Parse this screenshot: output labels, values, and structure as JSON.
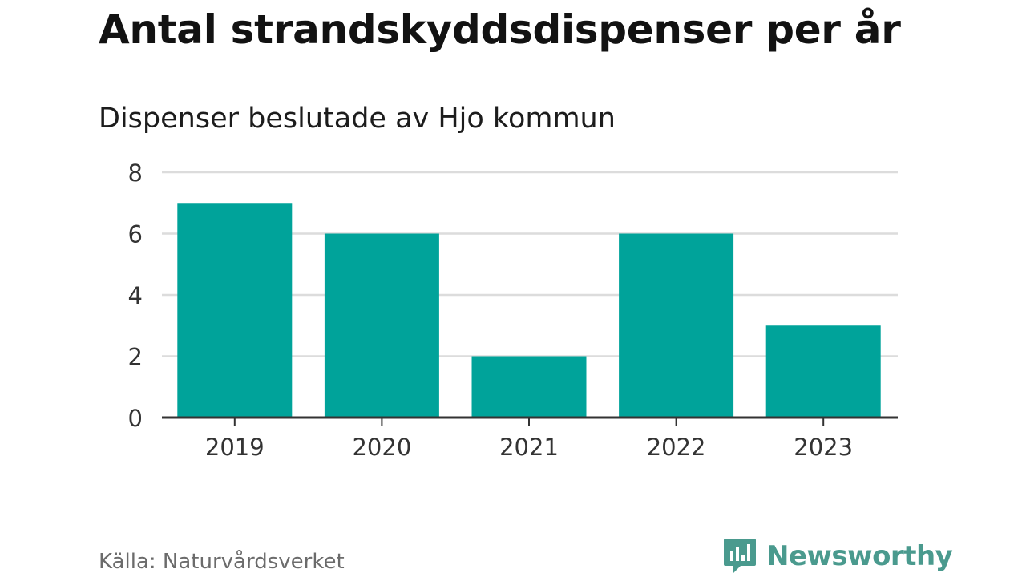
{
  "title": "Antal strandskyddsdispenser per år",
  "subtitle": "Dispenser beslutade av Hjo kommun",
  "source": "Källa: Naturvårdsverket",
  "brand": "Newsworthy",
  "colors": {
    "bar": "#00a39a",
    "grid": "#dcdcdc",
    "axis": "#333333",
    "brand": "#4a9a8e"
  },
  "chart_data": {
    "type": "bar",
    "title": "Antal strandskyddsdispenser per år",
    "subtitle": "Dispenser beslutade av Hjo kommun",
    "categories": [
      "2019",
      "2020",
      "2021",
      "2022",
      "2023"
    ],
    "values": [
      7,
      6,
      2,
      6,
      3
    ],
    "ylim": [
      0,
      8
    ],
    "yticks": [
      "0",
      "2",
      "4",
      "6",
      "8"
    ],
    "xlabel": "",
    "ylabel": "",
    "grid": true,
    "legend": "none"
  }
}
